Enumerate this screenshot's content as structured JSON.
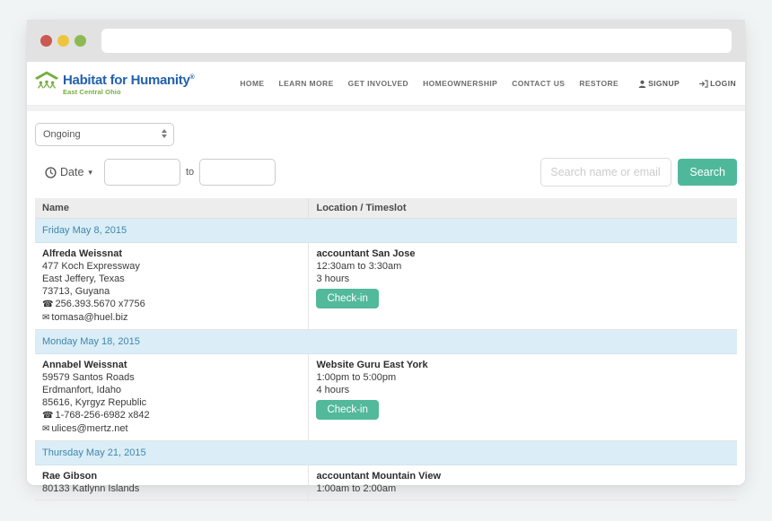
{
  "browser": {
    "address": "",
    "dots": [
      "close",
      "minimize",
      "maximize"
    ]
  },
  "header": {
    "logo": {
      "title": "Habitat for Humanity",
      "registered": "®",
      "subtitle": "East Central Ohio"
    },
    "nav": [
      "HOME",
      "LEARN MORE",
      "GET INVOLVED",
      "HOMEOWNERSHIP",
      "CONTACT US",
      "RESTORE"
    ],
    "auth": [
      {
        "icon": "user-icon",
        "label": "SIGNUP"
      },
      {
        "icon": "login-icon",
        "label": "LOGIN"
      }
    ]
  },
  "filters": {
    "status_selected": "Ongoing",
    "date_label": "Date",
    "date_from": "",
    "date_to": "",
    "range_separator": "to",
    "search_placeholder": "Search name or email",
    "search_button": "Search"
  },
  "table": {
    "columns": [
      "Name",
      "Location / Timeslot"
    ],
    "groups": [
      {
        "date": "Friday May 8, 2015",
        "rows": [
          {
            "name": "Alfreda Weissnat",
            "address": [
              "477 Koch Expressway",
              "East Jeffery, Texas",
              "73713, Guyana"
            ],
            "phone": "256.393.5670 x7756",
            "email": "tomasa@huel.biz",
            "slot": {
              "title": "accountant San Jose",
              "time": "12:30am to 3:30am",
              "duration": "3 hours",
              "action": "Check-in"
            }
          }
        ]
      },
      {
        "date": "Monday May 18, 2015",
        "rows": [
          {
            "name": "Annabel Weissnat",
            "address": [
              "59579 Santos Roads",
              "Erdmanfort, Idaho",
              "85616, Kyrgyz Republic"
            ],
            "phone": "1-768-256-6982 x842",
            "email": "ulices@mertz.net",
            "slot": {
              "title": "Website Guru East York",
              "time": "1:00pm to 5:00pm",
              "duration": "4 hours",
              "action": "Check-in"
            }
          }
        ]
      },
      {
        "date": "Thursday May 21, 2015",
        "rows": [
          {
            "name": "Rae Gibson",
            "address": [
              "80133 Katlynn Islands"
            ],
            "slot": {
              "title": "accountant Mountain View",
              "time": "1:00am to 2:00am"
            }
          }
        ]
      }
    ]
  },
  "colors": {
    "brand_blue": "#2161ad",
    "brand_green": "#76ae3f",
    "accent_teal": "#4fb89b",
    "group_row_bg": "#dbedf6",
    "group_row_text": "#3e87ad"
  },
  "icons": {
    "phone": "☎",
    "email": "✉",
    "clock": "clock-icon",
    "caret": "▾"
  }
}
